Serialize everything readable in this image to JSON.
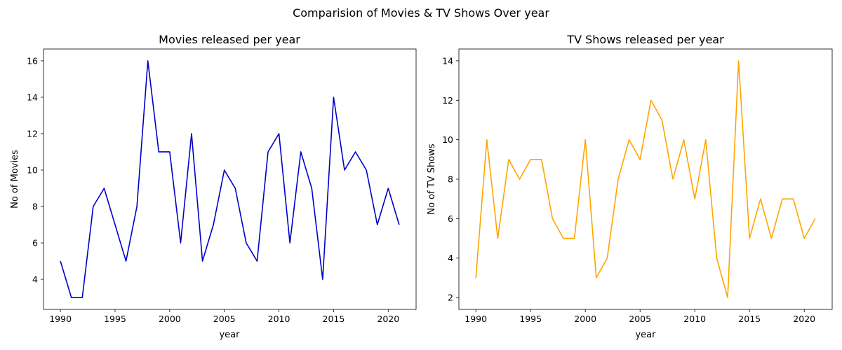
{
  "figure_title": "Comparision of Movies & TV Shows Over year",
  "chart_data": [
    {
      "type": "line",
      "title": "Movies released per year",
      "xlabel": "year",
      "ylabel": "No of Movies",
      "color": "#0000cc",
      "x": [
        1990,
        1991,
        1992,
        1993,
        1994,
        1995,
        1996,
        1997,
        1998,
        1999,
        2000,
        2001,
        2002,
        2003,
        2004,
        2005,
        2006,
        2007,
        2008,
        2009,
        2010,
        2011,
        2012,
        2013,
        2014,
        2015,
        2016,
        2017,
        2018,
        2019,
        2020,
        2021
      ],
      "y": [
        5,
        3,
        3,
        8,
        9,
        7,
        5,
        8,
        16,
        11,
        11,
        6,
        12,
        5,
        7,
        10,
        9,
        6,
        5,
        11,
        12,
        6,
        11,
        9,
        4,
        14,
        10,
        11,
        10,
        7,
        9,
        7
      ],
      "xticks": [
        1990,
        1995,
        2000,
        2005,
        2010,
        2015,
        2020
      ],
      "yticks": [
        4,
        6,
        8,
        10,
        12,
        14,
        16
      ],
      "xlim": [
        1988.45,
        2022.55
      ],
      "ylim": [
        2.35,
        16.65
      ],
      "grid": false
    },
    {
      "type": "line",
      "title": "TV Shows released per year",
      "xlabel": "year",
      "ylabel": "No of TV Shows",
      "color": "#ffa500",
      "x": [
        1990,
        1991,
        1992,
        1993,
        1994,
        1995,
        1996,
        1997,
        1998,
        1999,
        2000,
        2001,
        2002,
        2003,
        2004,
        2005,
        2006,
        2007,
        2008,
        2009,
        2010,
        2011,
        2012,
        2013,
        2014,
        2015,
        2016,
        2017,
        2018,
        2019,
        2020,
        2021
      ],
      "y": [
        3,
        10,
        5,
        9,
        8,
        9,
        9,
        6,
        5,
        5,
        10,
        3,
        4,
        8,
        10,
        9,
        12,
        11,
        8,
        10,
        7,
        10,
        4,
        2,
        14,
        5,
        7,
        5,
        7,
        7,
        5,
        6
      ],
      "xticks": [
        1990,
        1995,
        2000,
        2005,
        2010,
        2015,
        2020
      ],
      "yticks": [
        2,
        4,
        6,
        8,
        10,
        12,
        14
      ],
      "xlim": [
        1988.45,
        2022.55
      ],
      "ylim": [
        1.4,
        14.6
      ],
      "grid": false
    }
  ]
}
